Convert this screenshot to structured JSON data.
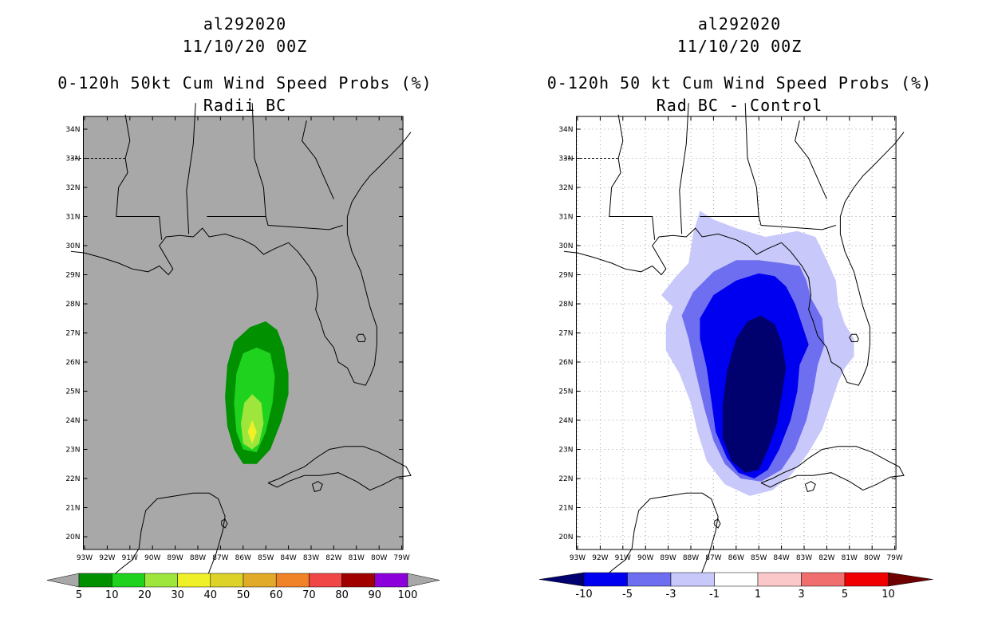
{
  "left_panel": {
    "storm_id": "al292020",
    "date_label": "11/10/20 00Z",
    "product_title": "0-120h 50kt Cum Wind Speed Probs (%)",
    "subtitle": "Radii BC",
    "background_color": "#a8a8a8",
    "colorbar": {
      "labels": [
        "5",
        "10",
        "20",
        "30",
        "40",
        "50",
        "60",
        "70",
        "80",
        "90",
        "100"
      ],
      "colors": [
        "#009000",
        "#1ed21e",
        "#9ee63c",
        "#f0f028",
        "#dcd228",
        "#e1aa28",
        "#f08228",
        "#f04646",
        "#a00000",
        "#8c00dc"
      ]
    }
  },
  "right_panel": {
    "storm_id": "al292020",
    "date_label": "11/10/20 00Z",
    "product_title": "0-120h 50 kt Cum Wind Speed Probs (%)",
    "subtitle": "Rad BC - Control",
    "background_color": "#ffffff",
    "colorbar": {
      "labels": [
        "-10",
        "-5",
        "-3",
        "-1",
        "1",
        "3",
        "5",
        "10"
      ],
      "colors": [
        "#00006e",
        "#0000f0",
        "#6e6ef0",
        "#c8c8fa",
        "#ffffff",
        "#fac8c8",
        "#f06e6e",
        "#f00000",
        "#6e0000"
      ]
    }
  },
  "axes": {
    "lat_labels": [
      "20N",
      "21N",
      "22N",
      "23N",
      "24N",
      "25N",
      "26N",
      "27N",
      "28N",
      "29N",
      "30N",
      "31N",
      "32N",
      "33N",
      "34N"
    ],
    "lon_labels": [
      "93W",
      "92W",
      "91W",
      "90W",
      "89W",
      "88W",
      "87W",
      "86W",
      "85W",
      "84W",
      "83W",
      "82W",
      "81W",
      "80W",
      "79W"
    ]
  }
}
